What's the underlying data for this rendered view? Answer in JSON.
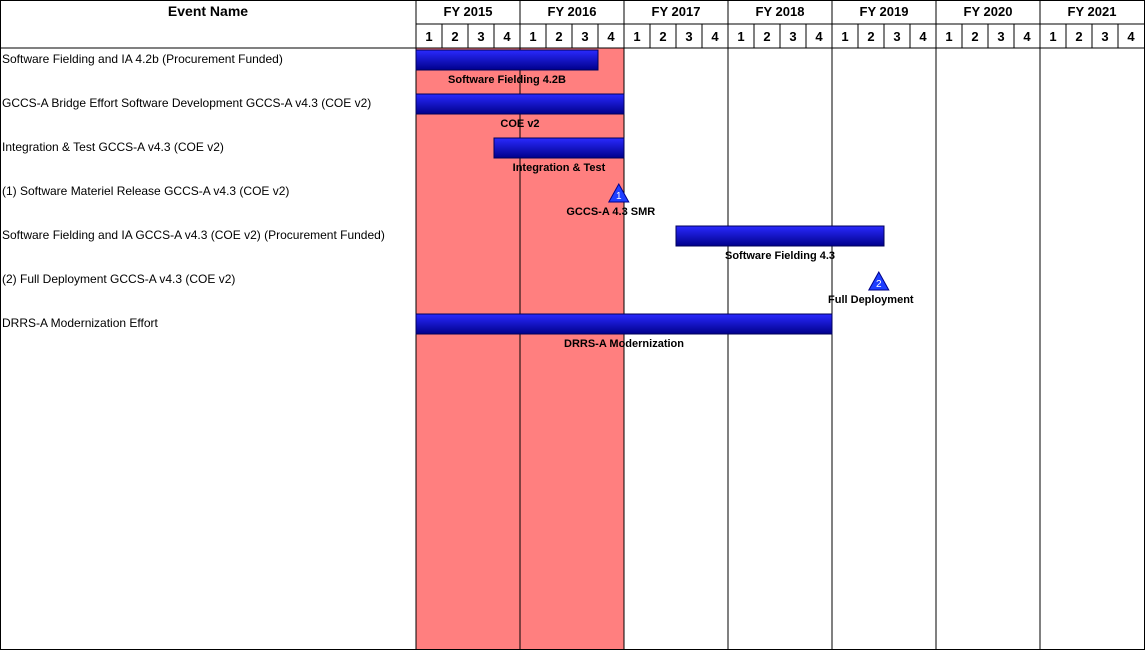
{
  "header": {
    "event_column_title": "Event Name"
  },
  "chart_data": {
    "type": "gantt",
    "fiscal_years": [
      "FY 2015",
      "FY 2016",
      "FY 2017",
      "FY 2018",
      "FY 2019",
      "FY 2020",
      "FY 2021"
    ],
    "quarters": [
      "1",
      "2",
      "3",
      "4"
    ],
    "timeline_start": 2015,
    "timeline_end": 2022,
    "highlight_range": [
      2015,
      2017
    ],
    "highlight_color": "#ff7f7f",
    "bar_color": "#00008b",
    "milestone_color": "#1f3fff",
    "events": [
      {
        "name": "Software Fielding and IA 4.2b (Procurement Funded)",
        "type": "bar",
        "start": 2015.0,
        "end": 2016.75,
        "label": "Software Fielding 4.2B"
      },
      {
        "name": "GCCS-A Bridge Effort Software Development GCCS-A v4.3 (COE v2)",
        "type": "bar",
        "start": 2015.0,
        "end": 2017.0,
        "label": "COE v2"
      },
      {
        "name": "Integration & Test GCCS-A v4.3 (COE v2)",
        "type": "bar",
        "start": 2015.75,
        "end": 2017.0,
        "label": "Integration & Test"
      },
      {
        "name": "(1) Software Materiel Release GCCS-A v4.3 (COE v2)",
        "type": "milestone",
        "at": 2016.95,
        "number": "1",
        "label": "GCCS-A 4.3 SMR"
      },
      {
        "name": "Software Fielding and IA GCCS-A v4.3 (COE v2) (Procurement Funded)",
        "type": "bar",
        "start": 2017.5,
        "end": 2019.5,
        "label": "Software Fielding 4.3"
      },
      {
        "name": "(2) Full Deployment GCCS-A v4.3 (COE v2)",
        "type": "milestone",
        "at": 2019.45,
        "number": "2",
        "label": "Full Deployment"
      },
      {
        "name": "DRRS-A Modernization Effort",
        "type": "bar",
        "start": 2015.0,
        "end": 2019.0,
        "label": "DRRS-A Modernization"
      }
    ]
  }
}
